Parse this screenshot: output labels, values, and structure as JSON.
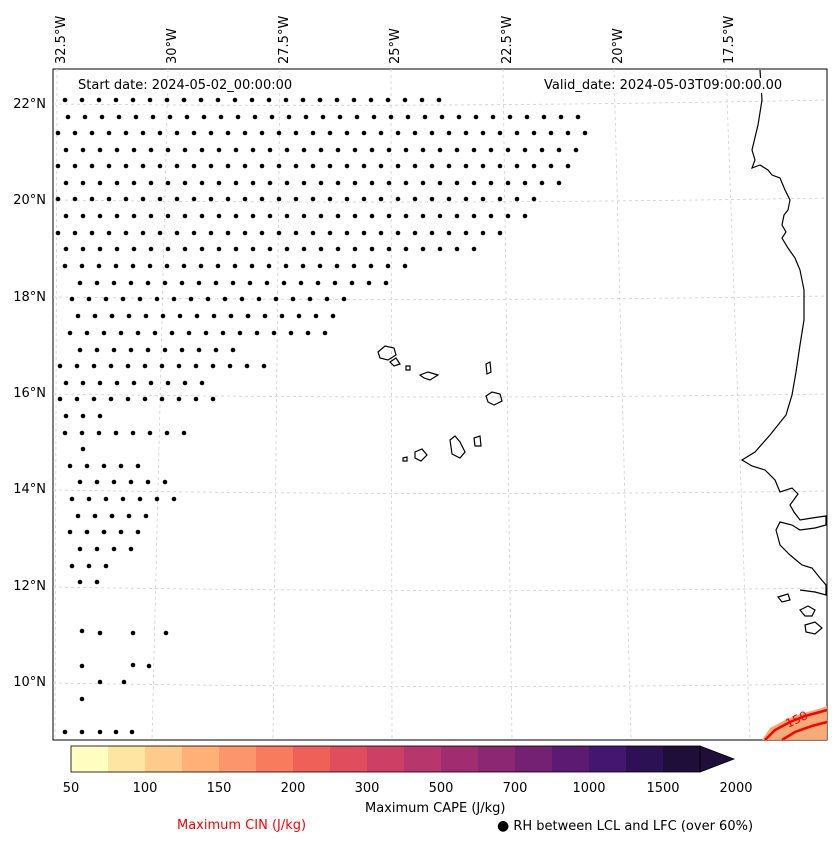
{
  "map": {
    "start_date": "Start date: 2024-05-02_00:00:00",
    "valid_date": "Valid_date: 2024-05-03T09:00:00.00",
    "lon_labels": [
      "32.5°W",
      "30°W",
      "27.5°W",
      "25°W",
      "22.5°W",
      "20°W",
      "17.5°W"
    ],
    "lat_labels": [
      "22°N",
      "20°N",
      "18°N",
      "16°N",
      "14°N",
      "12°N",
      "10°N"
    ],
    "contour_label": "150"
  },
  "colorbar": {
    "ticks": [
      "50",
      "100",
      "150",
      "200",
      "300",
      "500",
      "700",
      "1000",
      "1500",
      "2000"
    ],
    "colors": [
      "#fffdc0",
      "#fee5a0",
      "#fecb8a",
      "#feb077",
      "#fc966a",
      "#f87b5e",
      "#ee6058",
      "#e04d5c",
      "#cd3f65",
      "#b7366c",
      "#a12d71",
      "#8b2773",
      "#742174",
      "#5c1a72",
      "#441670",
      "#2c1155",
      "#1f0e3a"
    ],
    "label": "Maximum CAPE (J/kg)"
  },
  "legend": {
    "cin_label": "Maximum CIN (J/kg)",
    "cin_color": "#ff0000",
    "rh_label": "RH between LCL and LFC (over 60%)"
  }
}
